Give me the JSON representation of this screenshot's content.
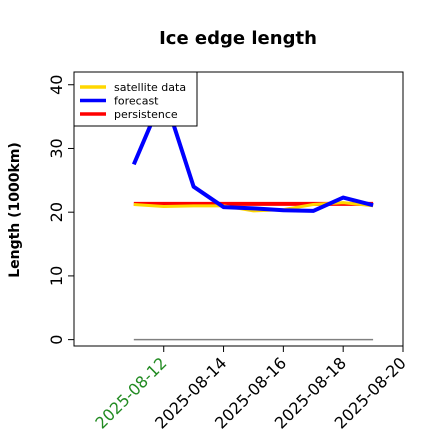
{
  "chart_data": {
    "type": "line",
    "title": "Ice edge length",
    "ylabel": "Length (1000km)",
    "xlabel": "",
    "x": [
      "2025-08-11",
      "2025-08-12",
      "2025-08-13",
      "2025-08-14",
      "2025-08-15",
      "2025-08-16",
      "2025-08-17",
      "2025-08-18",
      "2025-08-19"
    ],
    "xticks": [
      "2025-08-12",
      "2025-08-14",
      "2025-08-16",
      "2025-08-18",
      "2025-08-20"
    ],
    "xlim": [
      "2025-08-09",
      "2025-08-20"
    ],
    "highlight_tick": "2025-08-12",
    "highlight_color": "#228B22",
    "yticks": [
      0,
      10,
      20,
      30,
      40
    ],
    "ylim": [
      -1,
      42
    ],
    "legend_position": "upper-left",
    "series": [
      {
        "name": "satellite data",
        "color": "#FFD700",
        "width": 3,
        "values": [
          21.2,
          20.9,
          21.0,
          21.0,
          20.2,
          20.4,
          21.2,
          21.5,
          21.0
        ]
      },
      {
        "name": "forecast",
        "color": "#0000FF",
        "width": 4,
        "values": [
          27.5,
          38.5,
          24.0,
          20.8,
          20.6,
          20.3,
          20.2,
          22.3,
          21.1
        ]
      },
      {
        "name": "persistence",
        "color": "#FF0000",
        "width": 4,
        "values": [
          21.3,
          21.3,
          21.3,
          21.3,
          21.3,
          21.3,
          21.3,
          21.3,
          21.3
        ]
      }
    ],
    "reference_line": {
      "value": 0,
      "from": "2025-08-11",
      "to": "2025-08-19",
      "color": "#808080"
    },
    "grid": false
  }
}
